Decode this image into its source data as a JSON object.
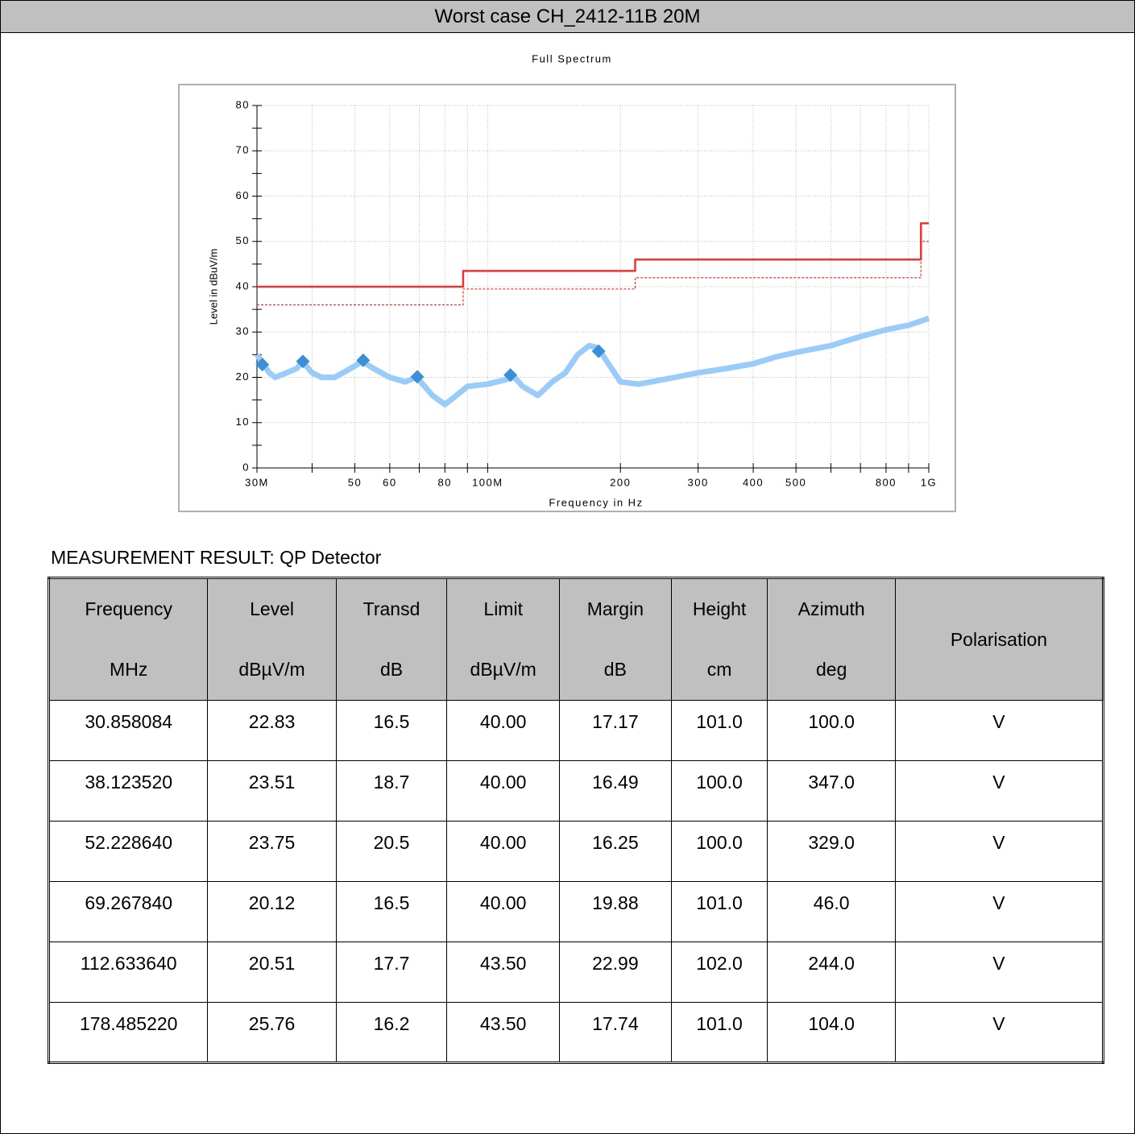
{
  "header": {
    "title": "Worst case CH_2412-11B 20M"
  },
  "chart_data": {
    "type": "line",
    "title": "Full Spectrum",
    "xlabel": "Frequency in Hz",
    "ylabel": "Level in dBuV/m",
    "xscale": "log",
    "xlim": [
      30,
      1000
    ],
    "ylim": [
      0,
      80
    ],
    "xticks": [
      {
        "value": 30,
        "label": "30M"
      },
      50,
      60,
      80,
      {
        "value": 100,
        "label": "100M"
      },
      200,
      300,
      400,
      500,
      800,
      {
        "value": 1000,
        "label": "1G"
      }
    ],
    "minor_xticks": [
      40,
      70,
      90,
      600,
      700,
      900
    ],
    "yticks": [
      0,
      10,
      20,
      30,
      40,
      50,
      60,
      70,
      80
    ],
    "minor_yticks": [
      5,
      15,
      25,
      35,
      45,
      55,
      65,
      75
    ],
    "grid": true,
    "marker_color": "#3a8fd6",
    "series": [
      {
        "color": "#ee3333",
        "dashed": false,
        "x": [
          30,
          88,
          88,
          216,
          216,
          960,
          960,
          1000
        ],
        "values": [
          40,
          40,
          43.5,
          43.5,
          46,
          46,
          54,
          54
        ]
      },
      {
        "color": "#ee3333",
        "dashed": true,
        "x": [
          30,
          88,
          88,
          216,
          216,
          960,
          960,
          1000
        ],
        "values": [
          36,
          36,
          39.5,
          39.5,
          42,
          42,
          50,
          50
        ]
      },
      {
        "color": "#99ccf8",
        "dashed": false,
        "x": [
          30,
          31,
          32,
          33,
          35,
          37,
          38,
          40,
          42,
          45,
          48,
          52,
          55,
          60,
          65,
          69,
          72,
          75,
          80,
          85,
          90,
          100,
          110,
          115,
          120,
          130,
          140,
          150,
          160,
          170,
          178,
          185,
          200,
          220,
          250,
          300,
          350,
          400,
          450,
          500,
          600,
          700,
          800,
          900,
          1000
        ],
        "values": [
          25,
          23,
          21,
          20,
          21,
          22,
          23.5,
          21,
          20,
          20,
          21.5,
          23.5,
          22,
          20,
          19,
          20,
          18,
          16,
          14,
          16,
          18,
          18.5,
          19.5,
          20,
          18,
          16,
          19,
          21,
          25,
          27,
          26.5,
          24,
          19,
          18.5,
          19.5,
          21,
          22,
          23,
          24.5,
          25.5,
          27,
          29,
          30.5,
          31.5,
          33
        ]
      }
    ]
  },
  "table": {
    "caption": "MEASUREMENT RESULT: QP Detector",
    "header": [
      {
        "name": "Frequency",
        "unit": "MHz"
      },
      {
        "name": "Level",
        "unit": "dBµV/m"
      },
      {
        "name": "Transd",
        "unit": "dB"
      },
      {
        "name": "Limit",
        "unit": "dBµV/m"
      },
      {
        "name": "Margin",
        "unit": "dB"
      },
      {
        "name": "Height",
        "unit": "cm"
      },
      {
        "name": "Azimuth",
        "unit": "deg"
      },
      {
        "name": "Polarisation"
      }
    ],
    "rows": [
      [
        "30.858084",
        "22.83",
        "16.5",
        "40.00",
        "17.17",
        "101.0",
        "100.0",
        "V"
      ],
      [
        "38.123520",
        "23.51",
        "18.7",
        "40.00",
        "16.49",
        "100.0",
        "347.0",
        "V"
      ],
      [
        "52.228640",
        "23.75",
        "20.5",
        "40.00",
        "16.25",
        "100.0",
        "329.0",
        "V"
      ],
      [
        "69.267840",
        "20.12",
        "16.5",
        "40.00",
        "19.88",
        "101.0",
        "46.0",
        "V"
      ],
      [
        "112.633640",
        "20.51",
        "17.7",
        "43.50",
        "22.99",
        "102.0",
        "244.0",
        "V"
      ],
      [
        "178.485220",
        "25.76",
        "16.2",
        "43.50",
        "17.74",
        "101.0",
        "104.0",
        "V"
      ]
    ]
  }
}
